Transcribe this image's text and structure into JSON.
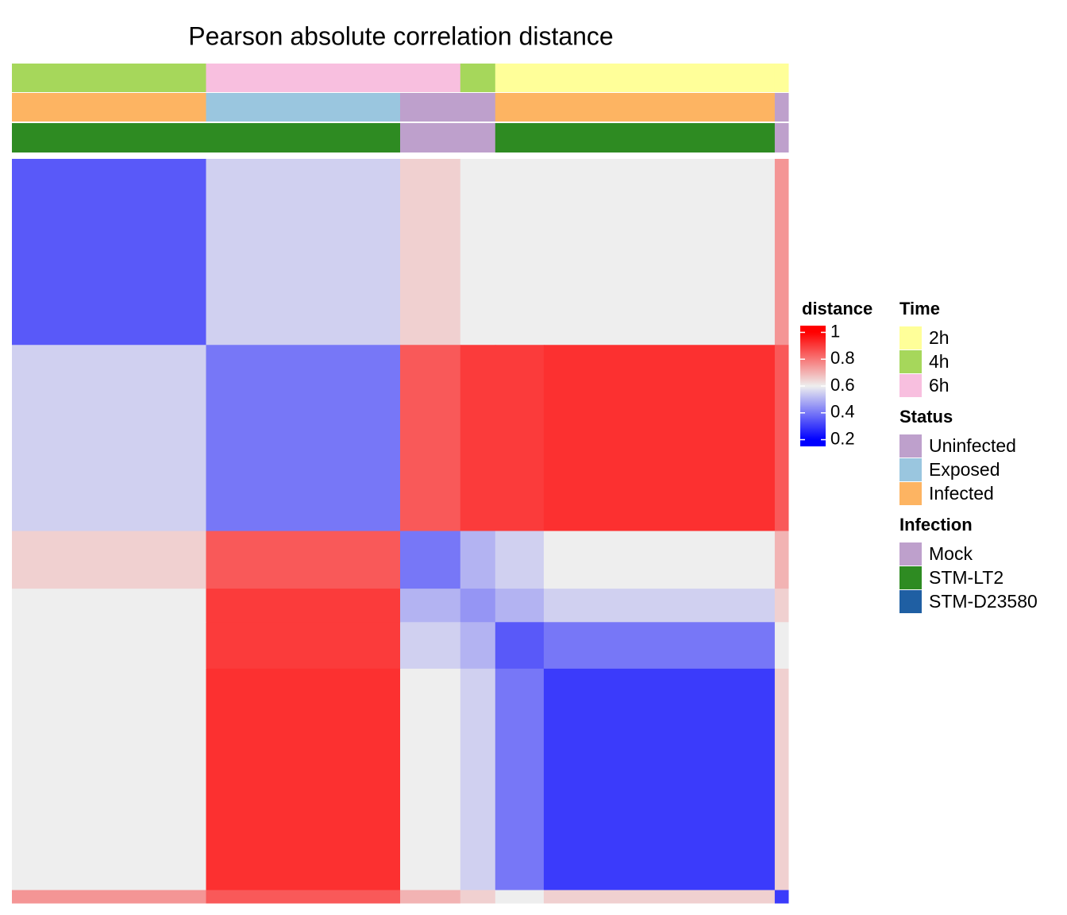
{
  "chart_data": {
    "type": "heatmap",
    "title": "Pearson absolute correlation distance",
    "group_sizes": [
      100,
      100,
      31,
      18,
      25,
      119,
      7
    ],
    "matrix": [
      [
        0.35,
        0.55,
        0.65,
        0.6,
        0.6,
        0.6,
        0.75
      ],
      [
        0.55,
        0.4,
        0.85,
        0.9,
        0.9,
        0.92,
        0.85
      ],
      [
        0.65,
        0.85,
        0.4,
        0.5,
        0.55,
        0.6,
        0.7
      ],
      [
        0.6,
        0.9,
        0.5,
        0.45,
        0.5,
        0.55,
        0.65
      ],
      [
        0.6,
        0.9,
        0.55,
        0.5,
        0.35,
        0.4,
        0.6
      ],
      [
        0.6,
        0.92,
        0.6,
        0.55,
        0.4,
        0.3,
        0.65
      ],
      [
        0.75,
        0.85,
        0.7,
        0.65,
        0.6,
        0.65,
        0.3
      ]
    ],
    "annotations": [
      [
        "4h",
        "6h",
        "6h",
        "4h",
        "2h",
        "2h",
        "2h"
      ],
      [
        "Infected",
        "Exposed",
        "Uninfected",
        "Uninfected",
        "Infected",
        "Infected",
        "Uninfected"
      ],
      [
        "STM-LT2",
        "STM-LT2",
        "Mock",
        "Mock",
        "STM-LT2",
        "STM-LT2",
        "Mock"
      ]
    ],
    "colorbar_title": "distance",
    "clim": [
      0.15,
      1.05
    ],
    "cticks": [
      0.2,
      0.4,
      0.6,
      0.8,
      1
    ],
    "color_stops": [
      {
        "value": 0.2,
        "color": "#0000ff"
      },
      {
        "value": 0.6,
        "color": "#eeeeee"
      },
      {
        "value": 1,
        "color": "#ff0000"
      }
    ],
    "legends": [
      {
        "title": "Time",
        "items": [
          {
            "label": "2h",
            "color": "#ffff99"
          },
          {
            "label": "4h",
            "color": "#a6d75b"
          },
          {
            "label": "6h",
            "color": "#f8bfdf"
          }
        ]
      },
      {
        "title": "Status",
        "items": [
          {
            "label": "Uninfected",
            "color": "#bea0cc"
          },
          {
            "label": "Exposed",
            "color": "#9ac6df"
          },
          {
            "label": "Infected",
            "color": "#fdb462"
          }
        ]
      },
      {
        "title": "Infection",
        "items": [
          {
            "label": "Mock",
            "color": "#bea0cc"
          },
          {
            "label": "STM-LT2",
            "color": "#2e8b22"
          },
          {
            "label": "STM-D23580",
            "color": "#1f5fa3"
          }
        ]
      }
    ]
  }
}
